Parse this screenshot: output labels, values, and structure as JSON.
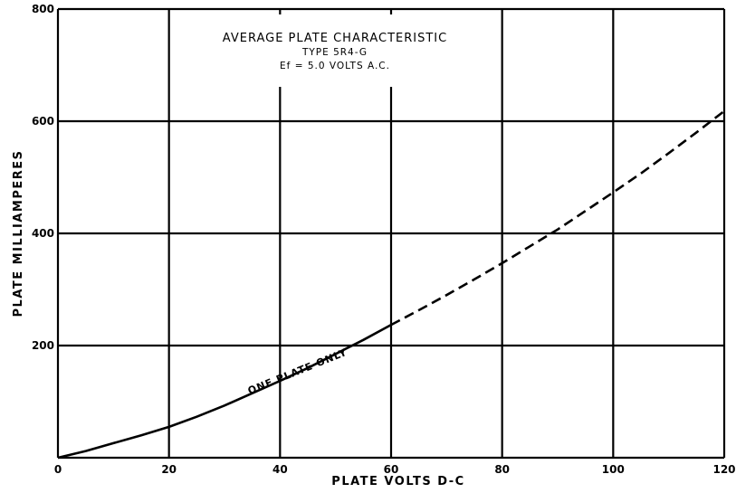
{
  "chart_data": {
    "type": "line",
    "title_lines": [
      "AVERAGE PLATE CHARACTERISTIC",
      "TYPE 5R4-G",
      "Ef = 5.0 VOLTS A.C."
    ],
    "xlabel": "PLATE VOLTS D-C",
    "ylabel": "PLATE MILLIAMPERES",
    "xlim": [
      0,
      120
    ],
    "ylim": [
      0,
      800
    ],
    "x_ticks": [
      0,
      20,
      40,
      60,
      80,
      100,
      120
    ],
    "y_ticks": [
      200,
      400,
      600,
      800
    ],
    "grid": true,
    "curve_annotation": "ONE PLATE ONLY",
    "series": [
      {
        "style": "solid",
        "x": [
          0,
          5,
          10,
          15,
          20,
          25,
          30,
          35,
          40,
          45,
          50,
          55,
          60
        ],
        "y": [
          0,
          12,
          26,
          40,
          55,
          73,
          93,
          115,
          137,
          160,
          185,
          210,
          237
        ]
      },
      {
        "style": "dashed",
        "x": [
          60,
          65,
          70,
          75,
          80,
          85,
          90,
          95,
          100,
          105,
          110,
          115,
          120
        ],
        "y": [
          237,
          263,
          290,
          318,
          347,
          377,
          407,
          440,
          473,
          507,
          543,
          580,
          618
        ]
      }
    ]
  }
}
